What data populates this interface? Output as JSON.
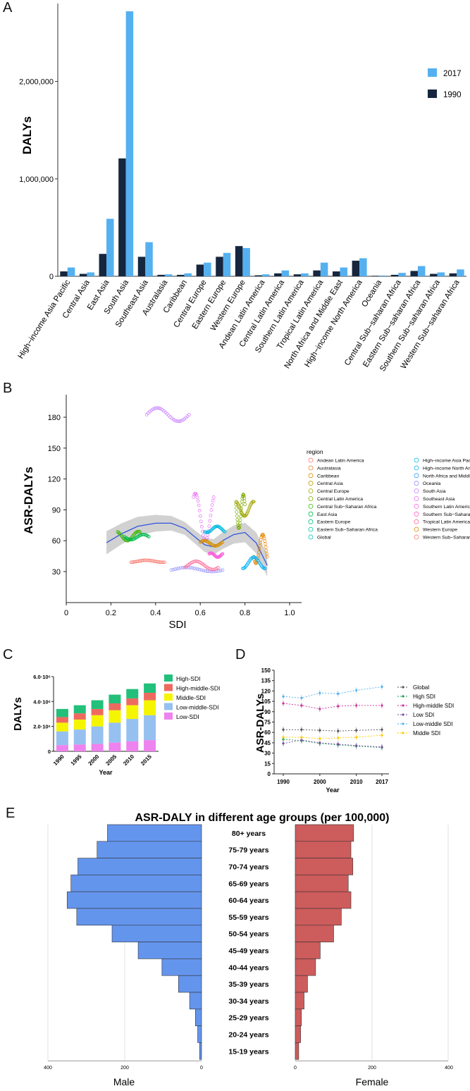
{
  "panels": {
    "a": {
      "letter": "A",
      "chart_data": {
        "type": "bar",
        "ylabel": "DALYs",
        "ylim": [
          0,
          2800000
        ],
        "yticks": [
          0,
          1000000,
          2000000
        ],
        "ytick_labels": [
          "0",
          "1,000,000",
          "2,000,000"
        ],
        "legend": [
          "2017",
          "1990"
        ],
        "colors": {
          "1990": "#15263e",
          "2017": "#55b0f0"
        },
        "categories": [
          "High−income Asia Pacific",
          "Central Asia",
          "East Asia",
          "South Asia",
          "Southeast Asia",
          "Australasia",
          "Caribbean",
          "Central Europe",
          "Eastern Europe",
          "Western Europe",
          "Andean Latin America",
          "Central Latin America",
          "Southern Latin America",
          "Tropical Latin America",
          "North Africa and Middle East",
          "High−income North America",
          "Oceania",
          "Central Sub−saharan Africa",
          "Eastern Sub−saharan Africa",
          "Southern Sub−saharan Africa",
          "Western Sub−saharan Africa"
        ],
        "series": [
          {
            "name": "1990",
            "values": [
              50000,
              25000,
              230000,
              1210000,
              200000,
              15000,
              15000,
              120000,
              200000,
              310000,
              10000,
              30000,
              20000,
              60000,
              50000,
              160000,
              5000,
              15000,
              55000,
              25000,
              30000
            ]
          },
          {
            "name": "2017",
            "values": [
              90000,
              40000,
              590000,
              2720000,
              350000,
              20000,
              30000,
              140000,
              240000,
              290000,
              20000,
              60000,
              30000,
              140000,
              90000,
              185000,
              8000,
              35000,
              105000,
              40000,
              70000
            ]
          }
        ]
      }
    },
    "b": {
      "letter": "B",
      "chart_data": {
        "type": "scatter",
        "xlabel": "SDI",
        "ylabel": "ASR-DALYs",
        "xlim": [
          0,
          1.0
        ],
        "ylim": [
          10,
          195
        ],
        "xticks": [
          "0",
          "0.2",
          "0.4",
          "0.6",
          "0.8",
          "1.0"
        ],
        "yticks": [
          "30",
          "60",
          "90",
          "120",
          "150",
          "180"
        ],
        "legend_title": "region",
        "legend": [
          "Andean Latin America",
          "Australasia",
          "Caribbean",
          "Central Asia",
          "Central Europe",
          "Central Latin America",
          "Central Sub−Saharan Africa",
          "East Asia",
          "Eastern Europe",
          "Eastern Sub−Saharan Africa",
          "Global",
          "High−income Asia Pacific",
          "High−income North America",
          "North Africa and Middle East",
          "Oceania",
          "South Asia",
          "Southeast Asia",
          "Southern Latin America",
          "Southern Sub−Saharan Africa",
          "Tropical Latin America",
          "Western Europe",
          "Western Sub−Saharan Africa"
        ],
        "legend_colors": [
          "#f8766d",
          "#ea8331",
          "#d89000",
          "#c09b00",
          "#a3a500",
          "#7cae00",
          "#39b600",
          "#00bb4e",
          "#00bf7d",
          "#00c1a3",
          "#00bfc4",
          "#00bae0",
          "#00b0f6",
          "#35a2ff",
          "#9590ff",
          "#c77cff",
          "#e76bf3",
          "#fa62db",
          "#ff62bc",
          "#ff6a98",
          "#e58700",
          "#f8766d"
        ],
        "trend_x": [
          0.18,
          0.25,
          0.32,
          0.4,
          0.47,
          0.53,
          0.58,
          0.62,
          0.66,
          0.7,
          0.75,
          0.8,
          0.85,
          0.9
        ],
        "trend_y": [
          58,
          67,
          74,
          77,
          77,
          72,
          63,
          56,
          54,
          60,
          66,
          68,
          58,
          36
        ],
        "clusters": [
          {
            "region": "South Asia",
            "x": [
              0.36,
              0.55
            ],
            "y": [
              176,
              189
            ]
          },
          {
            "region": "Southeast Asia",
            "x": [
              0.57,
              0.66
            ],
            "y": [
              60,
              106
            ]
          },
          {
            "region": "Central Sub−Saharan Africa",
            "x": [
              0.23,
              0.33
            ],
            "y": [
              60,
              69
            ]
          },
          {
            "region": "East Asia",
            "x": [
              0.26,
              0.37
            ],
            "y": [
              61,
              66
            ]
          },
          {
            "region": "High−income Asia Pacific",
            "x": [
              0.62,
              0.71
            ],
            "y": [
              68,
              74
            ]
          },
          {
            "region": "Andean Latin America",
            "x": [
              0.29,
              0.44
            ],
            "y": [
              39,
              41
            ]
          },
          {
            "region": "Oceania",
            "x": [
              0.47,
              0.7
            ],
            "y": [
              30,
              34
            ]
          },
          {
            "region": "Southern Latin America",
            "x": [
              0.64,
              0.7
            ],
            "y": [
              44,
              48
            ]
          },
          {
            "region": "Central Europe",
            "x": [
              0.76,
              0.84
            ],
            "y": [
              84,
              98
            ]
          },
          {
            "region": "Central Latin America",
            "x": [
              0.76,
              0.8
            ],
            "y": [
              72,
              105
            ]
          },
          {
            "region": "Western Europe",
            "x": [
              0.84,
              0.9
            ],
            "y": [
              38,
              66
            ]
          },
          {
            "region": "High−income North America",
            "x": [
              0.79,
              0.89
            ],
            "y": [
              33,
              44
            ]
          },
          {
            "region": "Tropical Latin America",
            "x": [
              0.53,
              0.68
            ],
            "y": [
              32,
              40
            ]
          },
          {
            "region": "Caribbean",
            "x": [
              0.6,
              0.7
            ],
            "y": [
              55,
              60
            ]
          }
        ]
      }
    },
    "c": {
      "letter": "C",
      "chart_data": {
        "type": "bar",
        "stacked": true,
        "xlabel": "Year",
        "ylabel": "DALYs",
        "categories": [
          "1990",
          "1995",
          "2000",
          "2005",
          "2010",
          "2015"
        ],
        "ytick_labels": [
          "0",
          "2.0·10⁶",
          "4.0·10⁶",
          "6.0·10⁶"
        ],
        "ylim": [
          0,
          6000000
        ],
        "series": [
          {
            "name": "Low-SDI",
            "color": "#ee82ee",
            "values": [
              500000,
              550000,
              600000,
              700000,
              800000,
              900000
            ]
          },
          {
            "name": "Low-middle-SDI",
            "color": "#96c0f0",
            "values": [
              1100000,
              1200000,
              1400000,
              1600000,
              1800000,
              2000000
            ]
          },
          {
            "name": "Middle-SDI",
            "color": "#f5f500",
            "values": [
              700000,
              800000,
              900000,
              1000000,
              1100000,
              1200000
            ]
          },
          {
            "name": "High-middle-SDI",
            "color": "#ee6a5e",
            "values": [
              450000,
              500000,
              500000,
              550000,
              550000,
              600000
            ]
          },
          {
            "name": "High-SDI",
            "color": "#22c07a",
            "values": [
              650000,
              650000,
              700000,
              700000,
              750000,
              750000
            ]
          }
        ],
        "legend": [
          "High-SDI",
          "High-middle-SDI",
          "Middle-SDI",
          "Low-middle-SDI",
          "Low-SDI"
        ]
      }
    },
    "d": {
      "letter": "D",
      "chart_data": {
        "type": "line",
        "xlabel": "Year",
        "ylabel": "ASR-DALYs",
        "x": [
          1990,
          1995,
          2000,
          2005,
          2010,
          2015,
          2017
        ],
        "xticks": [
          "1990",
          "2000",
          "2010",
          "2017"
        ],
        "yticks": [
          "0",
          "15",
          "30",
          "45",
          "60",
          "75",
          "90",
          "105",
          "120",
          "135",
          "150"
        ],
        "ylim": [
          0,
          150
        ],
        "series": [
          {
            "name": "Global",
            "color": "#555555",
            "values": [
              64,
              64,
              63,
              62,
              63,
              64,
              64
            ]
          },
          {
            "name": "High SDI",
            "color": "#1f9e5e",
            "values": [
              50,
              48,
              44,
              42,
              40,
              38,
              38
            ]
          },
          {
            "name": "High-middle SDI",
            "color": "#cc3399",
            "values": [
              102,
              99,
              94,
              98,
              99,
              98,
              99
            ]
          },
          {
            "name": "Low SDI",
            "color": "#7a4fa0",
            "values": [
              44,
              49,
              45,
              43,
              41,
              40,
              39
            ]
          },
          {
            "name": "Low-middle SDI",
            "color": "#55b0f0",
            "values": [
              112,
              110,
              117,
              116,
              121,
              124,
              126
            ]
          },
          {
            "name": "Middle SDI",
            "color": "#ffcc00",
            "values": [
              53,
              53,
              51,
              52,
              53,
              55,
              56
            ]
          }
        ],
        "legend": [
          "Global",
          "High SDI",
          "High-middle SDI",
          "Low SDI",
          "Low-middle SDI",
          "Middle SDI"
        ]
      }
    },
    "e": {
      "letter": "E",
      "chart_data": {
        "type": "bar",
        "orientation": "horizontal-pyramid",
        "title": "ASR-DALY in different age groups (per 100,000)",
        "categories": [
          "80+ years",
          "75-79 years",
          "70-74 years",
          "65-69 years",
          "60-64 years",
          "55-59 years",
          "50-54 years",
          "45-49 years",
          "40-44 years",
          "35-39 years",
          "30-34 years",
          "25-29 years",
          "20-24 years",
          "15-19 years"
        ],
        "series": [
          {
            "name": "Male",
            "color": "#6495ed",
            "values": [
              245,
              272,
              322,
              340,
              350,
              325,
              233,
              165,
              103,
              60,
              31,
              16,
              10,
              5
            ]
          },
          {
            "name": "Female",
            "color": "#cd5c5c",
            "values": [
              152,
              145,
              150,
              138,
              145,
              120,
              100,
              65,
              53,
              32,
              23,
              16,
              14,
              9
            ]
          }
        ],
        "male_xticks": [
          "400",
          "200",
          "0"
        ],
        "female_xticks": [
          "0",
          "200",
          "400"
        ],
        "xlim": [
          0,
          400
        ],
        "xlabels": [
          "Male",
          "Female"
        ]
      }
    }
  }
}
